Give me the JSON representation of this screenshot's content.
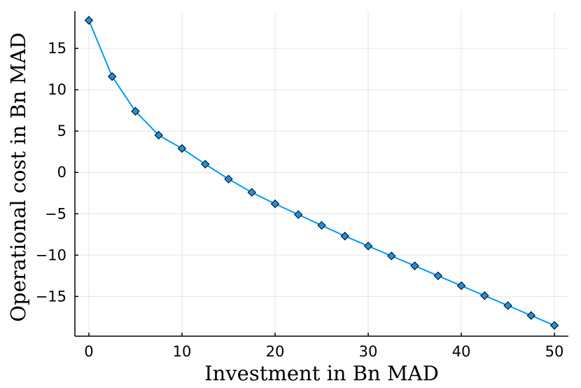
{
  "chart_data": {
    "type": "line",
    "xlabel": "Investment in Bn MAD",
    "ylabel": "Operational cost in Bn MAD",
    "xlim": [
      -1.5,
      51.5
    ],
    "ylim": [
      -19.8,
      19.5
    ],
    "xticks": [
      0,
      10,
      20,
      30,
      40,
      50
    ],
    "yticks": [
      -15,
      -10,
      -5,
      0,
      5,
      10,
      15
    ],
    "xtick_labels": [
      "0",
      "10",
      "20",
      "30",
      "40",
      "50"
    ],
    "ytick_labels": [
      "−15",
      "−10",
      "−5",
      "0",
      "5",
      "10",
      "15"
    ],
    "grid": true,
    "legend": "none",
    "marker": "diamond",
    "colors": {
      "series": "#009af9",
      "marker_fill": "#1f8fe0",
      "marker_edge": "#000000",
      "axis": "#000000"
    },
    "series": [
      {
        "x": [
          0,
          2.5,
          5,
          7.5,
          10,
          12.5,
          15,
          17.5,
          20,
          22.5,
          25,
          27.5,
          30,
          32.5,
          35,
          37.5,
          40,
          42.5,
          45,
          47.5,
          50
        ],
        "y": [
          18.4,
          11.6,
          7.4,
          4.5,
          2.9,
          1.0,
          -0.8,
          -2.4,
          -3.8,
          -5.1,
          -6.4,
          -7.7,
          -8.9,
          -10.1,
          -11.3,
          -12.5,
          -13.7,
          -14.9,
          -16.1,
          -17.3,
          -18.5
        ]
      }
    ]
  }
}
